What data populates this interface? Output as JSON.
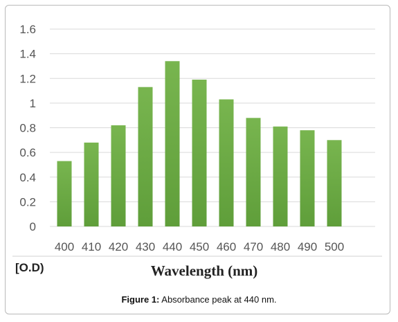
{
  "chart_data": {
    "type": "bar",
    "categories": [
      "400",
      "410",
      "420",
      "430",
      "440",
      "450",
      "460",
      "470",
      "480",
      "490",
      "500"
    ],
    "values": [
      0.53,
      0.68,
      0.82,
      1.13,
      1.34,
      1.19,
      1.03,
      0.88,
      0.81,
      0.78,
      0.7
    ],
    "xlabel": "Wavelength (nm)",
    "ylabel": "O.D",
    "ylim": [
      0,
      1.6
    ],
    "yticks": [
      "0",
      "0.2",
      "0.4",
      "0.6",
      "0.8",
      "1",
      "1.2",
      "1.4",
      "1.6"
    ],
    "grid": true,
    "bar_color": "#72b04a"
  },
  "caption": {
    "label": "Figure 1:",
    "text": " Absorbance peak at 440 nm."
  }
}
